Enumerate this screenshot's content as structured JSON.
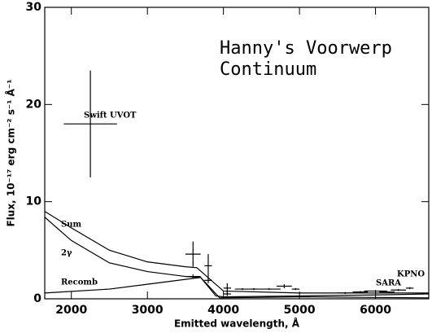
{
  "chart_data": {
    "type": "line",
    "title": [
      "Hanny's Voorwerp",
      "Continuum"
    ],
    "xlabel": "Emitted wavelength, Å",
    "ylabel": "Flux, 10⁻¹⁷ erg cm⁻² s⁻¹ Å⁻¹",
    "xlim": [
      1650,
      6700
    ],
    "ylim": [
      0,
      30
    ],
    "xticks": [
      2000,
      3000,
      4000,
      5000,
      6000
    ],
    "yticks": [
      0,
      10,
      20,
      30
    ],
    "color": "#000000",
    "series": [
      {
        "name": "Sum",
        "x": [
          1650,
          2000,
          2500,
          3000,
          3500,
          3650,
          4000,
          5000,
          6000,
          6700
        ],
        "values": [
          9.0,
          7.3,
          5.0,
          3.8,
          3.3,
          3.2,
          0.8,
          0.6,
          0.6,
          0.6
        ]
      },
      {
        "name": "2γ",
        "x": [
          1650,
          2000,
          2500,
          3000,
          3500,
          3700,
          3950,
          5000,
          6700
        ],
        "values": [
          8.4,
          6.0,
          3.7,
          2.8,
          2.3,
          2.2,
          0.1,
          0.2,
          0.1
        ]
      },
      {
        "name": "Recomb",
        "x": [
          1650,
          2500,
          3000,
          3500,
          3700,
          3900,
          4000,
          5000,
          6000,
          6700
        ],
        "values": [
          0.6,
          1.0,
          1.5,
          2.0,
          2.2,
          0.3,
          0.2,
          0.3,
          0.4,
          0.5
        ]
      }
    ],
    "points": {
      "x": [
        2250,
        3600,
        3600,
        3800,
        3800,
        4050,
        4050,
        4250,
        4400,
        4600,
        4800,
        4950,
        5600,
        5800,
        6000,
        6150,
        6300,
        6450
      ],
      "values": [
        18,
        4.6,
        2.3,
        3.4,
        1.9,
        1.1,
        0.5,
        1.0,
        1.0,
        1.0,
        1.3,
        1.0,
        0.6,
        0.7,
        0.8,
        0.7,
        0.9,
        1.1
      ],
      "xerr": [
        350,
        100,
        100,
        50,
        50,
        50,
        50,
        100,
        50,
        150,
        100,
        50,
        100,
        100,
        150,
        100,
        100,
        50
      ],
      "yerr": [
        5.5,
        1.3,
        0.2,
        1.2,
        0.3,
        0.5,
        0.2,
        0.1,
        0.1,
        0.1,
        0.2,
        0.1,
        0.1,
        0.1,
        0.1,
        0.1,
        0.1,
        0.1
      ]
    },
    "annotations": [
      "Swift UVOT",
      "SARA",
      "KPNO"
    ]
  }
}
